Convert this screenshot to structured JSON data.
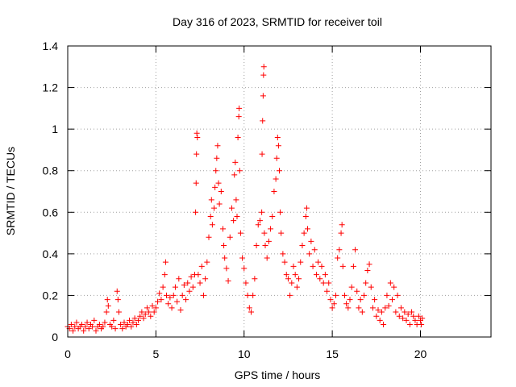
{
  "chart_data": {
    "type": "scatter",
    "title": "Day 316 of 2023, SRMTID for receiver toil",
    "xlabel": "GPS time / hours",
    "ylabel": "SRMTID / TECUs",
    "xlim": [
      0,
      24
    ],
    "ylim": [
      0,
      1.4
    ],
    "xticks": [
      0,
      5,
      10,
      15,
      20
    ],
    "yticks": [
      0,
      0.2,
      0.4,
      0.6,
      0.8,
      1,
      1.2,
      1.4
    ],
    "xtick_labels": [
      "0",
      "5",
      "10",
      "15",
      "20"
    ],
    "ytick_labels": [
      "0",
      "0.2",
      "0.4",
      "0.6",
      "0.8",
      "1",
      "1.2",
      "1.4"
    ],
    "grid": true,
    "marker": "+",
    "color": "#ff0000",
    "series": [
      {
        "name": "SRMTID",
        "points": [
          [
            0.0,
            0.05
          ],
          [
            0.1,
            0.04
          ],
          [
            0.2,
            0.06
          ],
          [
            0.3,
            0.03
          ],
          [
            0.4,
            0.05
          ],
          [
            0.5,
            0.07
          ],
          [
            0.6,
            0.04
          ],
          [
            0.7,
            0.05
          ],
          [
            0.8,
            0.06
          ],
          [
            0.9,
            0.03
          ],
          [
            1.0,
            0.05
          ],
          [
            1.1,
            0.07
          ],
          [
            1.2,
            0.04
          ],
          [
            1.3,
            0.06
          ],
          [
            1.4,
            0.05
          ],
          [
            1.5,
            0.08
          ],
          [
            1.6,
            0.03
          ],
          [
            1.7,
            0.05
          ],
          [
            1.8,
            0.06
          ],
          [
            1.9,
            0.04
          ],
          [
            2.0,
            0.05
          ],
          [
            2.1,
            0.07
          ],
          [
            2.2,
            0.12
          ],
          [
            2.25,
            0.18
          ],
          [
            2.3,
            0.15
          ],
          [
            2.4,
            0.06
          ],
          [
            2.5,
            0.05
          ],
          [
            2.6,
            0.08
          ],
          [
            2.7,
            0.04
          ],
          [
            2.8,
            0.22
          ],
          [
            2.85,
            0.18
          ],
          [
            2.9,
            0.12
          ],
          [
            3.0,
            0.06
          ],
          [
            3.1,
            0.04
          ],
          [
            3.2,
            0.07
          ],
          [
            3.3,
            0.05
          ],
          [
            3.4,
            0.06
          ],
          [
            3.5,
            0.08
          ],
          [
            3.6,
            0.05
          ],
          [
            3.7,
            0.07
          ],
          [
            3.8,
            0.09
          ],
          [
            3.9,
            0.06
          ],
          [
            4.0,
            0.08
          ],
          [
            4.1,
            0.1
          ],
          [
            4.2,
            0.12
          ],
          [
            4.3,
            0.09
          ],
          [
            4.4,
            0.11
          ],
          [
            4.5,
            0.14
          ],
          [
            4.6,
            0.12
          ],
          [
            4.7,
            0.1
          ],
          [
            4.8,
            0.15
          ],
          [
            4.9,
            0.12
          ],
          [
            5.0,
            0.14
          ],
          [
            5.1,
            0.17
          ],
          [
            5.2,
            0.21
          ],
          [
            5.3,
            0.18
          ],
          [
            5.4,
            0.24
          ],
          [
            5.5,
            0.3
          ],
          [
            5.55,
            0.36
          ],
          [
            5.6,
            0.2
          ],
          [
            5.7,
            0.16
          ],
          [
            5.8,
            0.19
          ],
          [
            5.9,
            0.14
          ],
          [
            6.0,
            0.2
          ],
          [
            6.1,
            0.24
          ],
          [
            6.2,
            0.17
          ],
          [
            6.3,
            0.28
          ],
          [
            6.4,
            0.13
          ],
          [
            6.5,
            0.2
          ],
          [
            6.6,
            0.25
          ],
          [
            6.7,
            0.18
          ],
          [
            6.8,
            0.26
          ],
          [
            6.9,
            0.22
          ],
          [
            7.0,
            0.29
          ],
          [
            7.1,
            0.24
          ],
          [
            7.2,
            0.3
          ],
          [
            7.25,
            0.6
          ],
          [
            7.28,
            0.74
          ],
          [
            7.3,
            0.88
          ],
          [
            7.32,
            0.98
          ],
          [
            7.35,
            0.96
          ],
          [
            7.4,
            0.3
          ],
          [
            7.5,
            0.26
          ],
          [
            7.6,
            0.34
          ],
          [
            7.7,
            0.2
          ],
          [
            7.8,
            0.28
          ],
          [
            7.9,
            0.36
          ],
          [
            8.0,
            0.48
          ],
          [
            8.1,
            0.58
          ],
          [
            8.15,
            0.66
          ],
          [
            8.2,
            0.54
          ],
          [
            8.3,
            0.62
          ],
          [
            8.35,
            0.72
          ],
          [
            8.4,
            0.8
          ],
          [
            8.45,
            0.86
          ],
          [
            8.5,
            0.92
          ],
          [
            8.55,
            0.74
          ],
          [
            8.6,
            0.64
          ],
          [
            8.7,
            0.7
          ],
          [
            8.8,
            0.52
          ],
          [
            8.85,
            0.44
          ],
          [
            8.9,
            0.38
          ],
          [
            9.0,
            0.33
          ],
          [
            9.1,
            0.27
          ],
          [
            9.2,
            0.48
          ],
          [
            9.3,
            0.62
          ],
          [
            9.4,
            0.56
          ],
          [
            9.45,
            0.78
          ],
          [
            9.5,
            0.84
          ],
          [
            9.55,
            0.66
          ],
          [
            9.6,
            0.58
          ],
          [
            9.65,
            0.96
          ],
          [
            9.7,
            1.06
          ],
          [
            9.72,
            1.1
          ],
          [
            9.75,
            0.8
          ],
          [
            9.8,
            0.5
          ],
          [
            9.9,
            0.38
          ],
          [
            10.0,
            0.33
          ],
          [
            10.1,
            0.26
          ],
          [
            10.2,
            0.2
          ],
          [
            10.3,
            0.14
          ],
          [
            10.4,
            0.12
          ],
          [
            10.5,
            0.2
          ],
          [
            10.6,
            0.28
          ],
          [
            10.7,
            0.44
          ],
          [
            10.8,
            0.54
          ],
          [
            10.9,
            0.56
          ],
          [
            11.0,
            0.6
          ],
          [
            11.02,
            0.88
          ],
          [
            11.05,
            1.04
          ],
          [
            11.08,
            1.16
          ],
          [
            11.1,
            1.26
          ],
          [
            11.12,
            1.3
          ],
          [
            11.15,
            0.5
          ],
          [
            11.2,
            0.44
          ],
          [
            11.3,
            0.38
          ],
          [
            11.4,
            0.46
          ],
          [
            11.5,
            0.52
          ],
          [
            11.6,
            0.58
          ],
          [
            11.7,
            0.7
          ],
          [
            11.8,
            0.76
          ],
          [
            11.85,
            0.86
          ],
          [
            11.9,
            0.96
          ],
          [
            11.95,
            0.92
          ],
          [
            12.0,
            0.8
          ],
          [
            12.05,
            0.6
          ],
          [
            12.1,
            0.5
          ],
          [
            12.2,
            0.4
          ],
          [
            12.3,
            0.36
          ],
          [
            12.4,
            0.3
          ],
          [
            12.5,
            0.28
          ],
          [
            12.6,
            0.2
          ],
          [
            12.7,
            0.26
          ],
          [
            12.8,
            0.34
          ],
          [
            12.9,
            0.3
          ],
          [
            13.0,
            0.24
          ],
          [
            13.1,
            0.28
          ],
          [
            13.2,
            0.36
          ],
          [
            13.3,
            0.44
          ],
          [
            13.4,
            0.5
          ],
          [
            13.5,
            0.58
          ],
          [
            13.55,
            0.62
          ],
          [
            13.6,
            0.52
          ],
          [
            13.7,
            0.4
          ],
          [
            13.8,
            0.46
          ],
          [
            13.9,
            0.34
          ],
          [
            14.0,
            0.42
          ],
          [
            14.1,
            0.3
          ],
          [
            14.2,
            0.36
          ],
          [
            14.3,
            0.28
          ],
          [
            14.4,
            0.34
          ],
          [
            14.5,
            0.26
          ],
          [
            14.6,
            0.3
          ],
          [
            14.7,
            0.22
          ],
          [
            14.8,
            0.26
          ],
          [
            14.9,
            0.18
          ],
          [
            15.0,
            0.14
          ],
          [
            15.1,
            0.16
          ],
          [
            15.2,
            0.2
          ],
          [
            15.3,
            0.38
          ],
          [
            15.4,
            0.42
          ],
          [
            15.5,
            0.5
          ],
          [
            15.55,
            0.54
          ],
          [
            15.6,
            0.34
          ],
          [
            15.7,
            0.2
          ],
          [
            15.8,
            0.16
          ],
          [
            15.9,
            0.14
          ],
          [
            16.0,
            0.18
          ],
          [
            16.1,
            0.24
          ],
          [
            16.2,
            0.34
          ],
          [
            16.3,
            0.42
          ],
          [
            16.4,
            0.22
          ],
          [
            16.5,
            0.14
          ],
          [
            16.6,
            0.18
          ],
          [
            16.7,
            0.12
          ],
          [
            16.8,
            0.2
          ],
          [
            16.9,
            0.26
          ],
          [
            17.0,
            0.32
          ],
          [
            17.1,
            0.35
          ],
          [
            17.2,
            0.24
          ],
          [
            17.3,
            0.14
          ],
          [
            17.4,
            0.18
          ],
          [
            17.5,
            0.1
          ],
          [
            17.6,
            0.13
          ],
          [
            17.7,
            0.08
          ],
          [
            17.8,
            0.12
          ],
          [
            17.9,
            0.06
          ],
          [
            18.0,
            0.14
          ],
          [
            18.1,
            0.2
          ],
          [
            18.2,
            0.15
          ],
          [
            18.3,
            0.26
          ],
          [
            18.4,
            0.18
          ],
          [
            18.5,
            0.24
          ],
          [
            18.6,
            0.12
          ],
          [
            18.7,
            0.2
          ],
          [
            18.8,
            0.1
          ],
          [
            18.9,
            0.14
          ],
          [
            19.0,
            0.09
          ],
          [
            19.1,
            0.12
          ],
          [
            19.2,
            0.08
          ],
          [
            19.3,
            0.11
          ],
          [
            19.4,
            0.06
          ],
          [
            19.5,
            0.12
          ],
          [
            19.6,
            0.1
          ],
          [
            19.7,
            0.08
          ],
          [
            19.8,
            0.06
          ],
          [
            19.9,
            0.1
          ],
          [
            20.0,
            0.08
          ],
          [
            20.05,
            0.06
          ],
          [
            20.1,
            0.09
          ]
        ]
      }
    ]
  }
}
